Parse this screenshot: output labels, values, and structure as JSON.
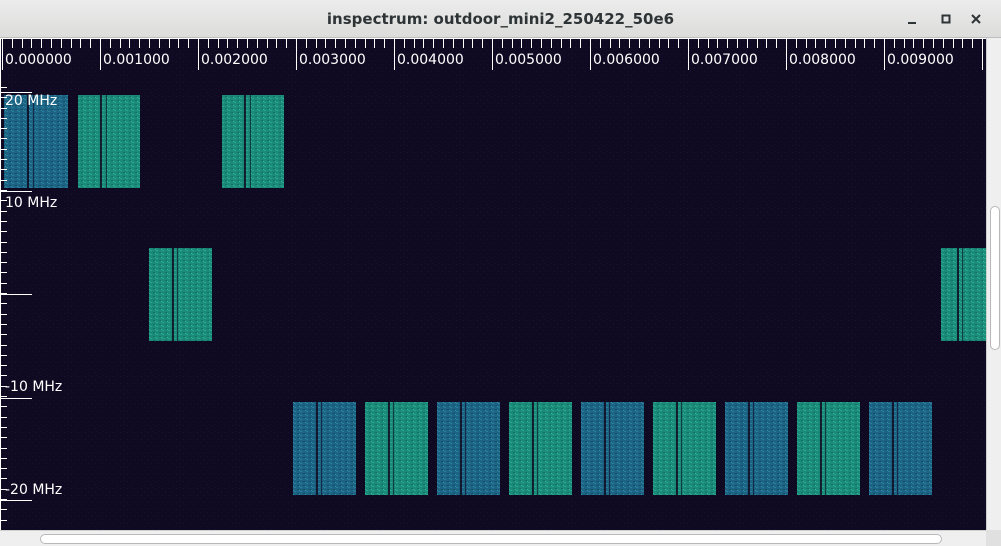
{
  "window": {
    "title": "inspectrum: outdoor_mini2_250422_50e6",
    "buttons": [
      "minimize-icon",
      "maximize-icon",
      "close-icon"
    ]
  },
  "spectrogram": {
    "time_labels": [
      "0.000000",
      "0.001000",
      "0.002000",
      "0.003000",
      "0.004000",
      "0.005000",
      "0.006000",
      "0.007000",
      "0.008000",
      "0.009000"
    ],
    "freq_labels": [
      "20 MHz",
      "10 MHz",
      "-10 MHz",
      "-20 MHz"
    ],
    "colors": {
      "background": "#0f0a21",
      "burst_green": "#1e8f7d",
      "burst_blue": "#1f6a88",
      "text": "#ffffff"
    }
  }
}
